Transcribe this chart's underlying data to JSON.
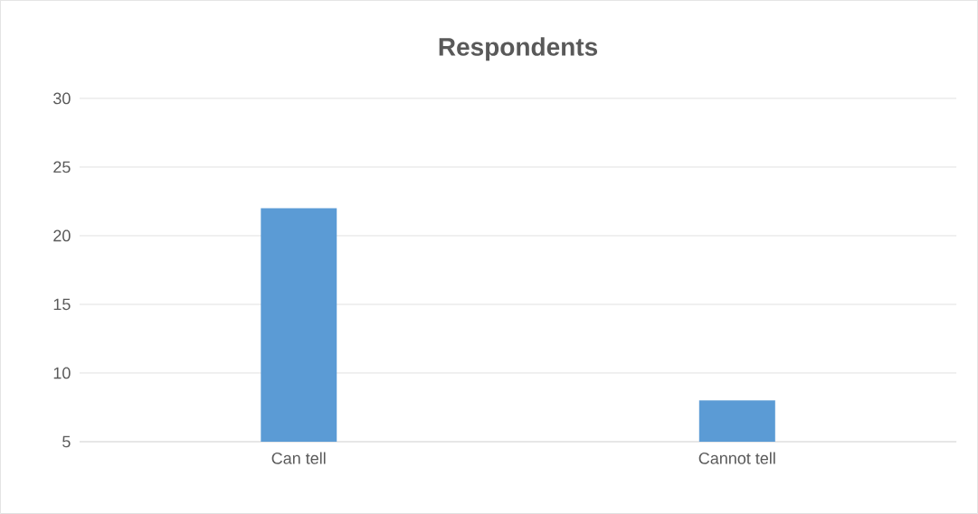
{
  "chart_data": {
    "type": "bar",
    "title": "Respondents",
    "categories": [
      "Can tell",
      "Cannot tell"
    ],
    "values": [
      22,
      8
    ],
    "color": "#5b9bd5",
    "ylim": [
      5,
      30
    ],
    "yticks": [
      5,
      10,
      15,
      20,
      25,
      30
    ],
    "grid": "y"
  }
}
